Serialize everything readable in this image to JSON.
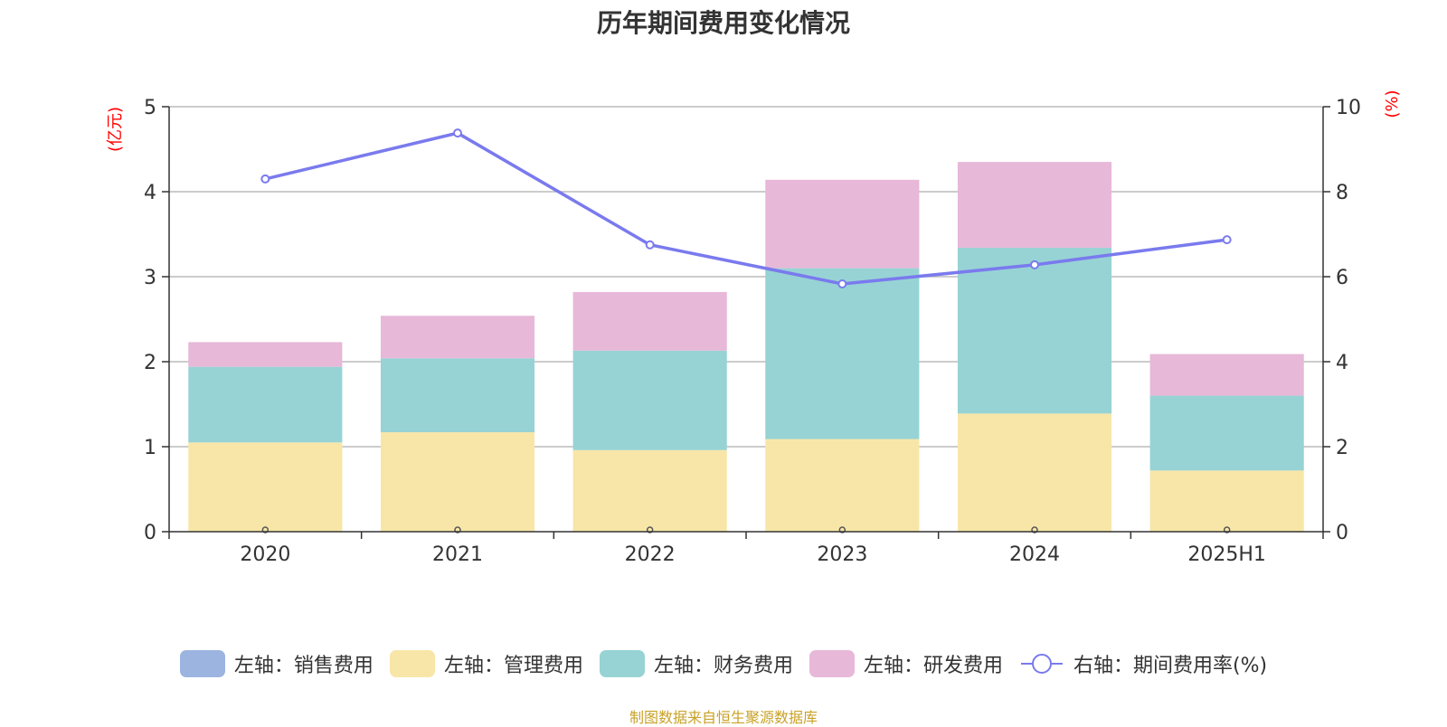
{
  "title": "历年期间费用变化情况",
  "source": "制图数据来自恒生聚源数据库",
  "colors": {
    "sales": "#9bb4e0",
    "admin": "#f8e6a8",
    "finance": "#97d3d4",
    "rnd": "#e7b8d8",
    "rate": "#7a7aee",
    "unit_label": "#ff0000",
    "axis_text": "#333333",
    "grid": "#bbbbbb"
  },
  "chart_data": {
    "type": "bar",
    "stacked": true,
    "categories": [
      "2020",
      "2021",
      "2022",
      "2023",
      "2024",
      "2025H1"
    ],
    "left_axis": {
      "unit_label": "(亿元)",
      "ylim": [
        0,
        5
      ],
      "ticks": [
        "0",
        "1",
        "2",
        "3",
        "4",
        "5"
      ]
    },
    "right_axis": {
      "unit_label": "(%)",
      "ylim": [
        0,
        10
      ],
      "ticks": [
        "0",
        "2",
        "4",
        "6",
        "8",
        "10"
      ]
    },
    "series": [
      {
        "name": "左轴：销售费用",
        "type": "bar",
        "axis": "left",
        "color_key": "sales",
        "values": [
          0,
          0,
          0,
          0,
          0,
          0
        ]
      },
      {
        "name": "左轴：管理费用",
        "type": "bar",
        "axis": "left",
        "color_key": "admin",
        "values": [
          1.05,
          1.17,
          0.96,
          1.09,
          1.39,
          0.72
        ]
      },
      {
        "name": "左轴：财务费用",
        "type": "bar",
        "axis": "left",
        "color_key": "finance",
        "values": [
          0.89,
          0.87,
          1.17,
          2.01,
          1.95,
          0.88
        ]
      },
      {
        "name": "左轴：研发费用",
        "type": "bar",
        "axis": "left",
        "color_key": "rnd",
        "values": [
          0.29,
          0.5,
          0.69,
          1.04,
          1.01,
          0.49
        ]
      },
      {
        "name": "右轴：期间费用率(%)",
        "type": "line",
        "axis": "right",
        "color_key": "rate",
        "values": [
          8.3,
          9.38,
          6.75,
          5.83,
          6.28,
          6.87
        ]
      }
    ],
    "grid": true,
    "legend_position": "bottom"
  }
}
